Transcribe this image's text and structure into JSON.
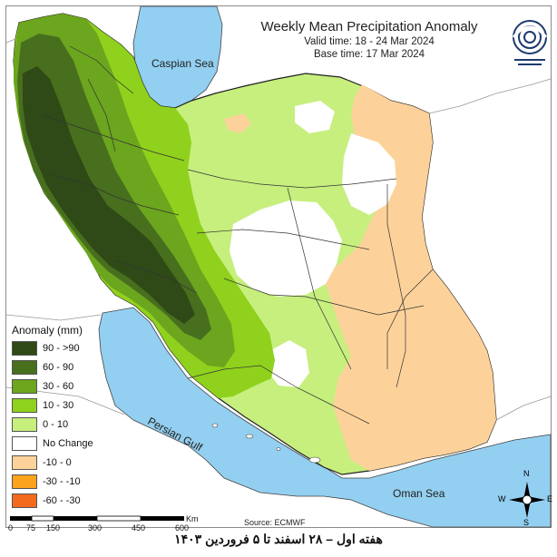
{
  "map": {
    "title": "Weekly Mean Precipitation Anomaly",
    "valid_time": "Valid time: 18 - 24 Mar 2024",
    "base_time": "Base time: 17 Mar 2024",
    "seas": {
      "caspian": "Caspian Sea",
      "persian_gulf": "Persian Gulf",
      "oman": "Oman Sea"
    },
    "source": "Source: ECMWF",
    "caption": "هفته اول – ۲۸ اسفند تا ۵ فروردین ۱۴۰۳",
    "scale": {
      "unit": "Km",
      "ticks": [
        "0",
        "75",
        "150",
        "300",
        "450",
        "600"
      ]
    },
    "compass": {
      "n": "N",
      "s": "S",
      "e": "E",
      "w": "W"
    },
    "logo_icon": "organization-logo-icon"
  },
  "legend": {
    "title": "Anomaly (mm)",
    "items": [
      {
        "label": "90 - >90",
        "color": "#2f4a16"
      },
      {
        "label": "60 - 90",
        "color": "#476f1e"
      },
      {
        "label": "30 - 60",
        "color": "#6ca51e"
      },
      {
        "label": "10 - 30",
        "color": "#8fd11c"
      },
      {
        "label": "0 - 10",
        "color": "#c6ef7e"
      },
      {
        "label": "No Change",
        "color": "#ffffff"
      },
      {
        "label": "-10 - 0",
        "color": "#fdd29a"
      },
      {
        "label": "-30 - -10",
        "color": "#fca31d"
      },
      {
        "label": "-60 - -30",
        "color": "#f46a1d"
      }
    ]
  },
  "colors": {
    "water": "#93cff0",
    "land_outside": "#ffffff",
    "border": "#222222"
  }
}
